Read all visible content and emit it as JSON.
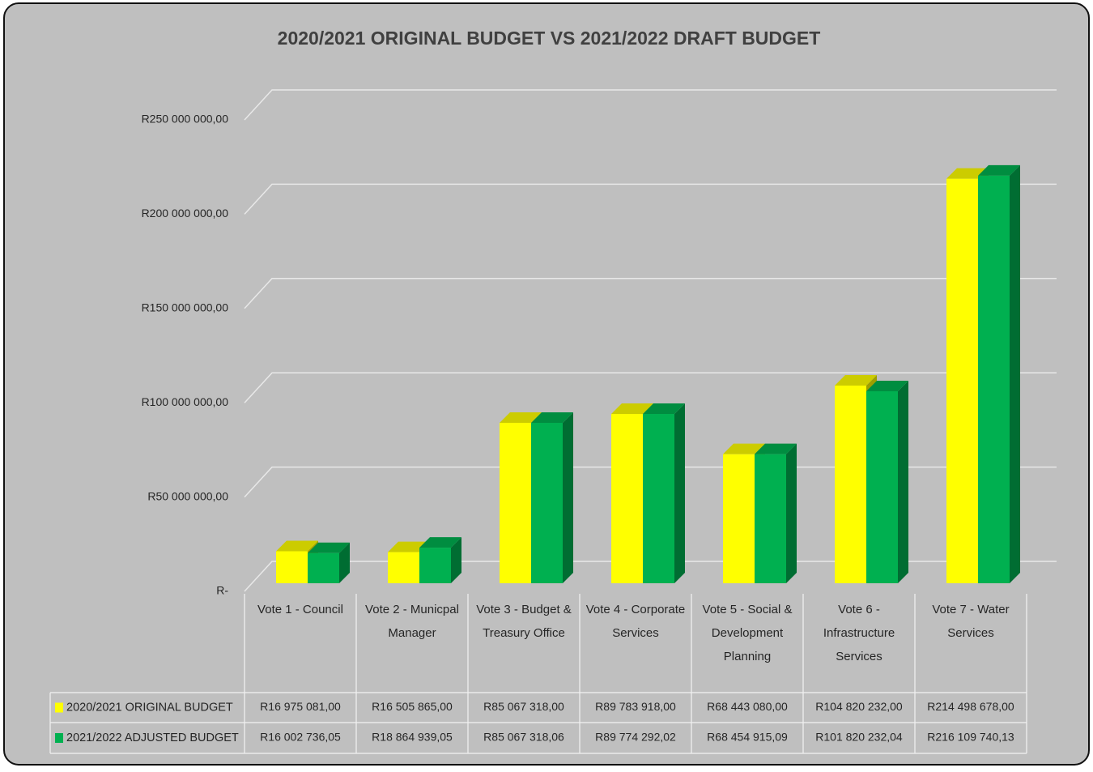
{
  "chart_data": {
    "type": "bar3d",
    "title": "2020/2021 ORIGINAL BUDGET VS 2021/2022 DRAFT BUDGET",
    "categories": [
      "Vote 1 - Council",
      "Vote 2 - Municpal Manager",
      "Vote 3 - Budget & Treasury Office",
      "Vote 4 - Corporate Services",
      "Vote 5 - Social & Development Planning",
      "Vote 6 - Infrastructure Services",
      "Vote 7 - Water Services"
    ],
    "series": [
      {
        "name": "2020/2021 ORIGINAL BUDGET",
        "color": "#ffff00",
        "values": [
          16975081.0,
          16505865.0,
          85067318.0,
          89783918.0,
          68443080.0,
          104820232.0,
          214498678.0
        ],
        "value_labels": [
          "R16 975 081,00",
          "R16 505 865,00",
          "R85 067 318,00",
          "R89 783 918,00",
          "R68 443 080,00",
          "R104 820 232,00",
          "R214 498 678,00"
        ]
      },
      {
        "name": "2021/2022 ADJUSTED BUDGET",
        "color": "#00b050",
        "values": [
          16002736.05,
          18864939.05,
          85067318.06,
          89774292.02,
          68454915.09,
          101820232.04,
          216109740.13
        ],
        "value_labels": [
          "R16 002 736,05",
          "R18 864 939,05",
          "R85 067 318,06",
          "R89 774 292,02",
          "R68 454 915,09",
          "R101 820 232,04",
          "R216 109 740,13"
        ]
      }
    ],
    "ylim": [
      0,
      250000000
    ],
    "yticks": [
      {
        "value": 0,
        "label": "R-"
      },
      {
        "value": 50000000,
        "label": "R50 000 000,00"
      },
      {
        "value": 100000000,
        "label": "R100 000 000,00"
      },
      {
        "value": 150000000,
        "label": "R150 000 000,00"
      },
      {
        "value": 200000000,
        "label": "R200 000 000,00"
      },
      {
        "value": 250000000,
        "label": "R250 000 000,00"
      }
    ],
    "grid": true
  }
}
